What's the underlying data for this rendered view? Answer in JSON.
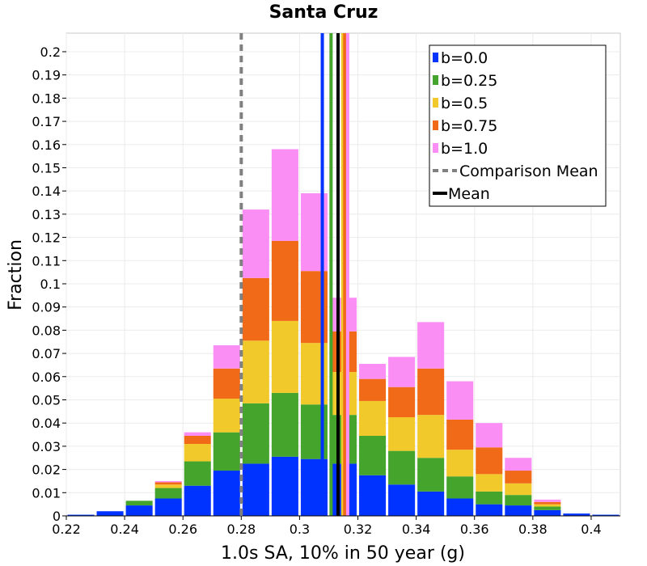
{
  "chart_data": {
    "type": "bar",
    "stacked": true,
    "title": "Santa Cruz",
    "xlabel": "1.0s SA, 10% in 50 year (g)",
    "ylabel": "Fraction",
    "xlim": [
      0.22,
      0.41
    ],
    "ylim": [
      0,
      0.208
    ],
    "x_ticks": [
      "0.22",
      "0.24",
      "0.26",
      "0.28",
      "0.3",
      "0.32",
      "0.34",
      "0.36",
      "0.38",
      "0.4"
    ],
    "y_ticks": [
      "0",
      "0.01",
      "0.02",
      "0.03",
      "0.04",
      "0.05",
      "0.06",
      "0.07",
      "0.08",
      "0.09",
      "0.1",
      "0.11",
      "0.12",
      "0.13",
      "0.14",
      "0.15",
      "0.16",
      "0.17",
      "0.18",
      "0.19",
      "0.2"
    ],
    "grid": true,
    "legend_position": "top-right",
    "bin_width": 0.01,
    "bin_centers": [
      0.225,
      0.235,
      0.245,
      0.255,
      0.265,
      0.275,
      0.285,
      0.295,
      0.305,
      0.315,
      0.325,
      0.335,
      0.345,
      0.355,
      0.365,
      0.375,
      0.385,
      0.395,
      0.405
    ],
    "series": [
      {
        "name": "b=0.0",
        "color": "#0033ff",
        "values": [
          0.0005,
          0.002,
          0.0045,
          0.0075,
          0.013,
          0.0195,
          0.0225,
          0.0255,
          0.0245,
          0.0225,
          0.0175,
          0.0135,
          0.0105,
          0.0075,
          0.005,
          0.0045,
          0.0025,
          0.001,
          0.0005
        ]
      },
      {
        "name": "b=0.25",
        "color": "#44a42b",
        "values": [
          0.0,
          0.0,
          0.002,
          0.0045,
          0.0105,
          0.0165,
          0.026,
          0.0275,
          0.0235,
          0.021,
          0.017,
          0.0145,
          0.0145,
          0.0095,
          0.0055,
          0.0045,
          0.0015,
          0.0,
          0.0
        ]
      },
      {
        "name": "b=0.5",
        "color": "#f2c92a",
        "values": [
          0.0,
          0.0,
          0.0,
          0.0015,
          0.0075,
          0.0145,
          0.027,
          0.031,
          0.0265,
          0.0185,
          0.015,
          0.0145,
          0.0185,
          0.0115,
          0.0075,
          0.005,
          0.001,
          0.0,
          0.0
        ]
      },
      {
        "name": "b=0.75",
        "color": "#f06a17",
        "values": [
          0.0,
          0.0,
          0.0,
          0.001,
          0.0035,
          0.013,
          0.027,
          0.0345,
          0.031,
          0.0175,
          0.0095,
          0.013,
          0.02,
          0.013,
          0.0115,
          0.0055,
          0.001,
          0.0,
          0.0
        ]
      },
      {
        "name": "b=1.0",
        "color": "#fa8ef5",
        "values": [
          0.0,
          0.0,
          0.0,
          0.0005,
          0.0015,
          0.01,
          0.0295,
          0.0395,
          0.0335,
          0.0145,
          0.0065,
          0.013,
          0.02,
          0.0165,
          0.0105,
          0.0055,
          0.001,
          0.0,
          0.0
        ]
      }
    ],
    "vertical_lines": [
      {
        "name": "b=0.0 mean",
        "x": 0.3078,
        "color": "#0033ff",
        "style": "solid"
      },
      {
        "name": "b=0.25 mean",
        "x": 0.3108,
        "color": "#44a42b",
        "style": "solid"
      },
      {
        "name": "b=0.5 mean",
        "x": 0.3148,
        "color": "#f2c92a",
        "style": "solid"
      },
      {
        "name": "b=0.75 mean",
        "x": 0.3155,
        "color": "#f06a17",
        "style": "solid"
      },
      {
        "name": "b=1.0 mean",
        "x": 0.3165,
        "color": "#fa8ef5",
        "style": "solid"
      },
      {
        "name": "Mean",
        "x": 0.3132,
        "color": "#000000",
        "style": "solid"
      },
      {
        "name": "Comparison Mean",
        "x": 0.28,
        "color": "#808080",
        "style": "dashed"
      }
    ],
    "legend": [
      {
        "label": "b=0.0",
        "color": "#0033ff",
        "kind": "box"
      },
      {
        "label": "b=0.25",
        "color": "#44a42b",
        "kind": "box"
      },
      {
        "label": "b=0.5",
        "color": "#f2c92a",
        "kind": "box"
      },
      {
        "label": "b=0.75",
        "color": "#f06a17",
        "kind": "box"
      },
      {
        "label": "b=1.0",
        "color": "#fa8ef5",
        "kind": "box"
      },
      {
        "label": "Comparison Mean",
        "color": "#808080",
        "kind": "dashed"
      },
      {
        "label": "Mean",
        "color": "#000000",
        "kind": "line"
      }
    ]
  }
}
